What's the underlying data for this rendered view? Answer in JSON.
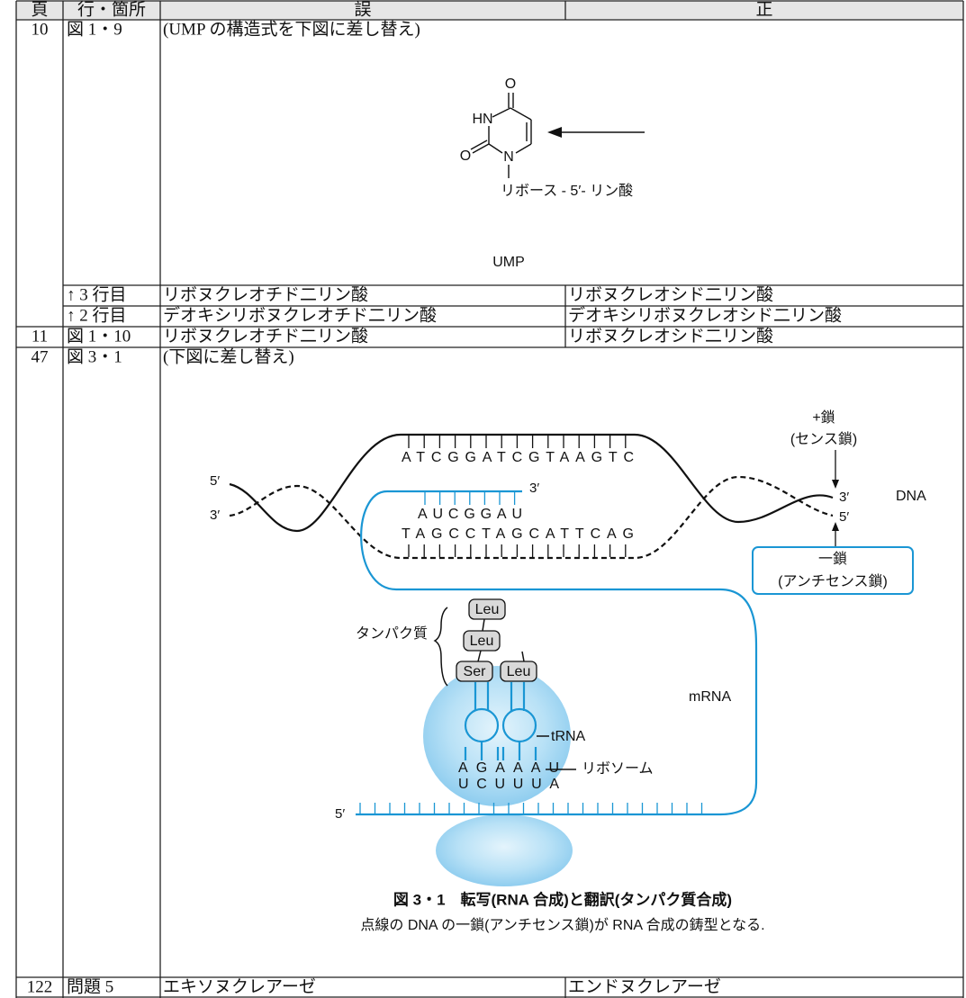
{
  "table": {
    "header": [
      "頁",
      "行・箇所",
      "誤",
      "正"
    ],
    "rows": [
      {
        "page": "10",
        "place": "図 1・9",
        "wrong": "(UMP の構造式を下図に差し替え)"
      },
      {
        "place": "↑ 3 行目",
        "wrong": "リボヌクレオチド二リン酸",
        "right": "リボヌクレオシド二リン酸"
      },
      {
        "place": "↑ 2 行目",
        "wrong": "デオキシリボヌクレオチド二リン酸",
        "right": "デオキシリボヌクレオシド二リン酸"
      },
      {
        "page": "11",
        "place": "図 1・10",
        "wrong": "リボヌクレオチド二リン酸",
        "right": "リボヌクレオシド二リン酸"
      },
      {
        "page": "47",
        "place": "図 3・1",
        "wrong": "(下図に差し替え)"
      },
      {
        "page": "122",
        "place": "問題 5",
        "wrong": "エキソヌクレアーゼ",
        "right": "エンドヌクレアーゼ"
      }
    ]
  },
  "figures": {
    "ump": {
      "atoms": [
        "O",
        "HN",
        "O",
        "N"
      ],
      "substituent": "リボース - 5′- リン酸",
      "label": "UMP"
    },
    "transcription": {
      "plus_strand": "+鎖",
      "plus_note": "(センス鎖)",
      "left_ends": [
        "5′",
        "3′"
      ],
      "right_ends": [
        "3′",
        "5′"
      ],
      "top_sequence": "ATCGGATCGTAAGTC",
      "rna_end": "3′",
      "rna_sequence": "AUCGGAU",
      "bottom_sequence": "TAGCCTAGCATTCAG",
      "dna": "DNA",
      "minus_strand": "一鎖",
      "minus_note": "(アンチセンス鎖)",
      "protein": "タンパク質",
      "amino_acids": [
        "Leu",
        "Leu",
        "Ser",
        "Leu"
      ],
      "mrna": "mRNA",
      "trna": "tRNA",
      "anticodons": "AGAAAU",
      "codons": "UCUUUA",
      "ribosome": "リボソーム",
      "mrna_end": "5′",
      "caption": "図 3・1　転写(RNA 合成)と翻訳(タンパク質合成)",
      "note": "点線の DNA の一鎖(アンチセンス鎖)が RNA 合成の鋳型となる."
    }
  }
}
